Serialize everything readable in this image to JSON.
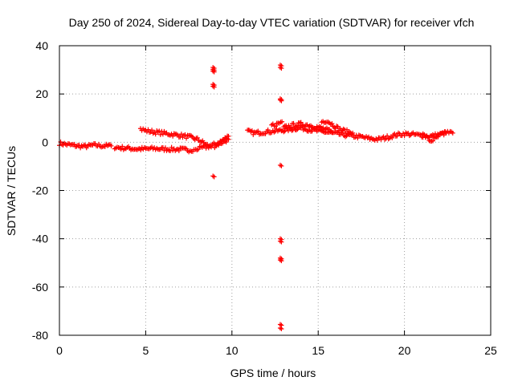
{
  "chart_data": {
    "type": "scatter",
    "title": "Day 250 of 2024, Sidereal Day-to-day VTEC variation (SDTVAR) for receiver vfch",
    "xlabel": "GPS time / hours",
    "ylabel": "SDTVAR / TECUs",
    "xlim": [
      0,
      25
    ],
    "ylim": [
      -80,
      40
    ],
    "xticks": [
      0,
      5,
      10,
      15,
      20,
      25
    ],
    "yticks": [
      -80,
      -60,
      -40,
      -20,
      0,
      20,
      40
    ],
    "xtick_labels": [
      "0",
      "5",
      "10",
      "15",
      "20",
      "25"
    ],
    "ytick_labels": [
      "-80",
      "-60",
      "-40",
      "-20",
      "0",
      "20",
      "40"
    ],
    "grid": true,
    "marker": "+",
    "color": "#ff0000",
    "series": [
      {
        "name": "main_trace",
        "segments": [
          [
            [
              0.0,
              -0.5
            ],
            [
              0.5,
              -1.0
            ],
            [
              1.0,
              -1.5
            ],
            [
              1.5,
              -1.8
            ],
            [
              2.0,
              -1.2
            ],
            [
              2.5,
              -1.5
            ],
            [
              3.0,
              -1.5
            ]
          ],
          [
            [
              3.2,
              -2.0
            ],
            [
              3.5,
              -2.3
            ],
            [
              4.0,
              -2.5
            ],
            [
              4.5,
              -2.8
            ],
            [
              5.0,
              -2.8
            ],
            [
              5.5,
              -2.6
            ],
            [
              6.0,
              -2.8
            ],
            [
              6.5,
              -2.9
            ],
            [
              7.0,
              -3.0
            ],
            [
              7.5,
              -3.2
            ],
            [
              7.8,
              -3.0
            ]
          ],
          [
            [
              4.7,
              5.5
            ],
            [
              5.0,
              4.8
            ],
            [
              5.5,
              4.2
            ],
            [
              6.0,
              3.8
            ],
            [
              6.5,
              3.3
            ],
            [
              7.0,
              2.8
            ],
            [
              7.5,
              2.2
            ],
            [
              8.0,
              1.2
            ],
            [
              8.3,
              0.0
            ],
            [
              8.5,
              -1.0
            ],
            [
              8.8,
              -2.0
            ]
          ],
          [
            [
              7.9,
              -2.8
            ],
            [
              8.2,
              -2.5
            ],
            [
              8.5,
              -2.0
            ],
            [
              8.8,
              -1.5
            ],
            [
              9.1,
              -0.5
            ],
            [
              9.4,
              0.5
            ],
            [
              9.6,
              1.5
            ],
            [
              9.8,
              2.5
            ]
          ],
          [
            [
              9.0,
              -1.5
            ],
            [
              9.3,
              -0.5
            ],
            [
              9.6,
              0.5
            ],
            [
              9.8,
              1.2
            ]
          ],
          [
            [
              10.9,
              4.5
            ],
            [
              11.3,
              3.8
            ],
            [
              11.8,
              4.2
            ],
            [
              12.3,
              4.5
            ],
            [
              12.8,
              4.8
            ],
            [
              13.2,
              5.2
            ],
            [
              13.6,
              5.6
            ],
            [
              14.0,
              6.0
            ],
            [
              14.5,
              5.2
            ],
            [
              15.0,
              4.6
            ],
            [
              15.5,
              4.2
            ],
            [
              16.0,
              3.6
            ],
            [
              16.5,
              3.0
            ],
            [
              17.0,
              2.6
            ],
            [
              17.5,
              2.2
            ],
            [
              18.0,
              1.5
            ],
            [
              18.5,
              1.2
            ],
            [
              19.0,
              2.0
            ],
            [
              19.5,
              3.0
            ],
            [
              20.0,
              3.5
            ],
            [
              20.5,
              3.2
            ],
            [
              21.0,
              2.8
            ],
            [
              21.5,
              2.4
            ],
            [
              22.0,
              3.2
            ],
            [
              22.5,
              4.0
            ],
            [
              22.8,
              3.8
            ]
          ],
          [
            [
              13.0,
              6.0
            ],
            [
              13.5,
              7.0
            ],
            [
              14.0,
              7.5
            ],
            [
              14.5,
              7.0
            ],
            [
              15.0,
              6.2
            ],
            [
              15.5,
              5.2
            ],
            [
              15.8,
              4.0
            ]
          ],
          [
            [
              12.3,
              7.0
            ],
            [
              12.6,
              7.5
            ],
            [
              12.9,
              8.5
            ]
          ],
          [
            [
              15.2,
              8.5
            ],
            [
              15.5,
              9.0
            ],
            [
              15.8,
              7.5
            ],
            [
              16.2,
              5.5
            ],
            [
              16.6,
              4.5
            ],
            [
              17.0,
              3.8
            ]
          ],
          [
            [
              21.0,
              3.5
            ],
            [
              21.3,
              2.0
            ],
            [
              21.5,
              0.5
            ],
            [
              21.8,
              1.5
            ],
            [
              22.1,
              3.0
            ],
            [
              22.4,
              3.8
            ]
          ]
        ]
      }
    ],
    "outliers": [
      [
        8.9,
        31
      ],
      [
        8.9,
        29.5
      ],
      [
        8.9,
        30.2
      ],
      [
        8.9,
        24
      ],
      [
        8.9,
        23.2
      ],
      [
        8.9,
        -14
      ],
      [
        12.8,
        32
      ],
      [
        12.8,
        31
      ],
      [
        12.8,
        18
      ],
      [
        12.8,
        17.5
      ],
      [
        12.8,
        -9.5
      ],
      [
        12.8,
        -40
      ],
      [
        12.8,
        -41
      ],
      [
        12.8,
        -48
      ],
      [
        12.8,
        -48.8
      ],
      [
        12.8,
        -75.5
      ],
      [
        12.8,
        -77
      ]
    ]
  }
}
